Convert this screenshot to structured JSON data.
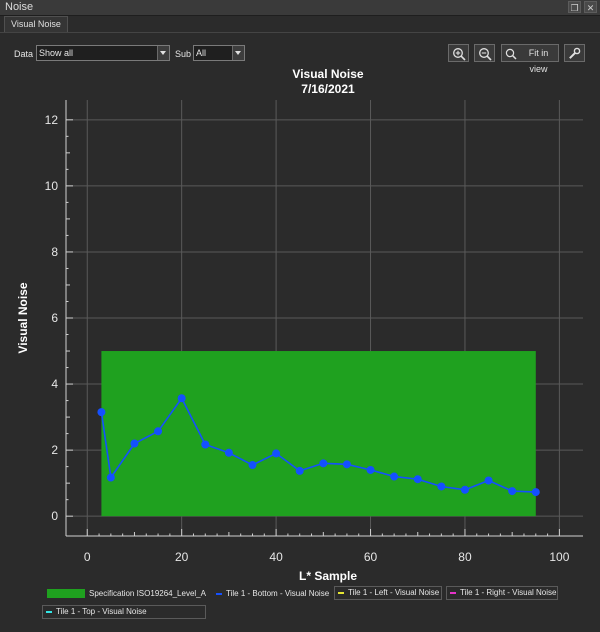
{
  "window": {
    "title": "Noise"
  },
  "tabs": [
    {
      "label": "Visual Noise"
    }
  ],
  "toolbar": {
    "data_label": "Data",
    "data_value": "Show all",
    "sub_label": "Sub",
    "sub_value": "All",
    "zoom_in_icon": "zoom-in-icon",
    "zoom_out_icon": "zoom-out-icon",
    "fit_label": "Fit in view",
    "settings_icon": "wrench-icon"
  },
  "colors": {
    "spec": "#1fa11f",
    "bottom": "#1450ff",
    "left": "#e6e633",
    "right": "#e633c8",
    "top": "#33e6e6",
    "grid": "#5a5a5a"
  },
  "chart_data": {
    "type": "line",
    "title": "Visual Noise",
    "subtitle": "7/16/2021",
    "xlabel": "L* Sample",
    "ylabel": "Visual Noise",
    "xlim": [
      -4.5,
      105
    ],
    "ylim": [
      -0.6,
      12.6
    ],
    "xticks": [
      0,
      20,
      40,
      60,
      80,
      100
    ],
    "yticks": [
      0,
      2,
      4,
      6,
      8,
      10,
      12
    ],
    "grid": true,
    "legend_position": "bottom",
    "spec_band": {
      "name": "Specification ISO19264_Level_A",
      "x": [
        3,
        95
      ],
      "y": [
        0,
        5
      ]
    },
    "series": [
      {
        "name": "Tile 1 - Bottom - Visual Noise",
        "x": [
          3,
          5,
          10,
          15,
          20,
          25,
          30,
          35,
          40,
          45,
          50,
          55,
          60,
          65,
          70,
          75,
          80,
          85,
          90,
          95
        ],
        "y": [
          3.15,
          1.17,
          2.2,
          2.57,
          3.57,
          2.17,
          1.92,
          1.55,
          1.9,
          1.37,
          1.6,
          1.57,
          1.4,
          1.2,
          1.12,
          0.9,
          0.8,
          1.08,
          0.76,
          0.73
        ]
      },
      {
        "name": "Tile 1 - Left - Visual Noise",
        "x": [],
        "y": []
      },
      {
        "name": "Tile 1 - Right - Visual Noise",
        "x": [],
        "y": []
      },
      {
        "name": "Tile 1 - Top - Visual Noise",
        "x": [],
        "y": []
      }
    ]
  }
}
